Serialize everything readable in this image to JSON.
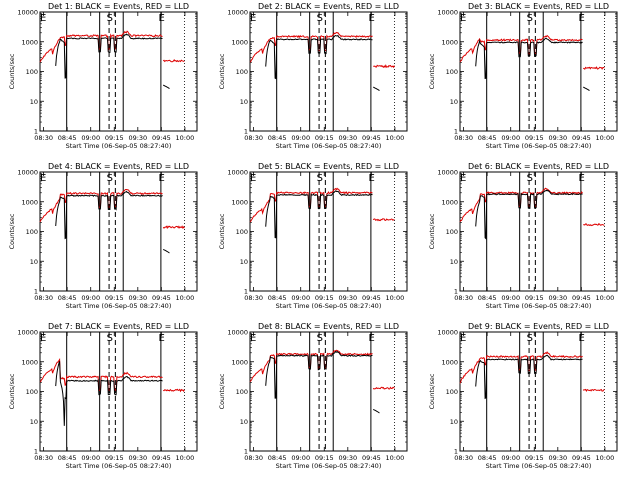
{
  "chart_data": {
    "type": "line",
    "layout": "3x3 grid",
    "shared": {
      "ylabel": "Counts/sec",
      "xlabel": "Start Time (06-Sep-05 08:27:40)",
      "yscale": "log",
      "ylim": [
        1,
        10000
      ],
      "yticks": [
        "1",
        "10",
        "100",
        "1000",
        "10000"
      ],
      "xlim_minutes": [
        0,
        100
      ],
      "xticks": [
        "08:30",
        "08:45",
        "09:00",
        "09:15",
        "09:30",
        "09:45",
        "10:00"
      ],
      "xtick_minutes": [
        2.3,
        17.3,
        32.3,
        47.3,
        62.3,
        77.3,
        92.3
      ],
      "series_names": [
        "Events",
        "LLD"
      ],
      "series_colors": [
        "#000000",
        "#dd0000"
      ],
      "solid_lines_minutes": [
        17,
        38,
        53,
        77
      ],
      "dashed_lines_minutes": [
        44,
        48
      ],
      "dotted_line_minutes": 92,
      "region_marks": [
        {
          "label": "E",
          "minute": 2
        },
        {
          "label": "S",
          "minute": 44.5
        },
        {
          "label": "E",
          "minute": 77.5
        }
      ]
    },
    "panels": [
      {
        "title": "Det 1: BLACK = Events, RED = LLD",
        "ev_plateau": 1300,
        "lld_plateau": 1600,
        "lld_after": 230,
        "ev_after": 35
      },
      {
        "title": "Det 2: BLACK = Events, RED = LLD",
        "ev_plateau": 1200,
        "lld_plateau": 1500,
        "lld_after": 150,
        "ev_after": 30
      },
      {
        "title": "Det 3: BLACK = Events, RED = LLD",
        "ev_plateau": 950,
        "lld_plateau": 1150,
        "lld_after": 130,
        "ev_after": 30
      },
      {
        "title": "Det 4: BLACK = Events, RED = LLD",
        "ev_plateau": 1600,
        "lld_plateau": 1900,
        "lld_after": 140,
        "ev_after": 25
      },
      {
        "title": "Det 5: BLACK = Events, RED = LLD",
        "ev_plateau": 1700,
        "lld_plateau": 2000,
        "lld_after": 250,
        "ev_after": 0
      },
      {
        "title": "Det 6: BLACK = Events, RED = LLD",
        "ev_plateau": 1800,
        "lld_plateau": 2000,
        "lld_after": 170,
        "ev_after": 0
      },
      {
        "title": "Det 7: BLACK = Events, RED = LLD",
        "ev_plateau": 230,
        "lld_plateau": 310,
        "lld_after": 110,
        "ev_after": 0
      },
      {
        "title": "Det 8: BLACK = Events, RED = LLD",
        "ev_plateau": 1600,
        "lld_plateau": 1800,
        "lld_after": 130,
        "ev_after": 25
      },
      {
        "title": "Det 9: BLACK = Events, RED = LLD",
        "ev_plateau": 1200,
        "lld_plateau": 1500,
        "lld_after": 110,
        "ev_after": 0
      }
    ]
  }
}
